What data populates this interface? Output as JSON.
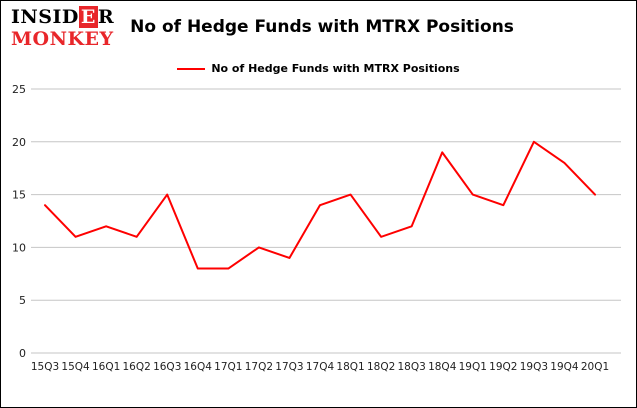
{
  "brand": {
    "line1_pre": "INSID",
    "line1_highlight": "E",
    "line1_post": "R",
    "line2": "MONKEY",
    "accent_color": "#e8262a"
  },
  "header": {
    "title": "No of Hedge Funds with MTRX Positions"
  },
  "legend": {
    "label": "No of Hedge Funds with MTRX Positions",
    "color": "#fe0000"
  },
  "chart_data": {
    "type": "line",
    "title": "No of Hedge Funds with MTRX Positions",
    "categories": [
      "15Q3",
      "15Q4",
      "16Q1",
      "16Q2",
      "16Q3",
      "16Q4",
      "17Q1",
      "17Q2",
      "17Q3",
      "17Q4",
      "18Q1",
      "18Q2",
      "18Q3",
      "18Q4",
      "19Q1",
      "19Q2",
      "19Q3",
      "19Q4",
      "20Q1"
    ],
    "values": [
      14,
      11,
      12,
      11,
      15,
      8,
      8,
      10,
      9,
      14,
      15,
      11,
      12,
      19,
      15,
      14,
      20,
      18,
      15
    ],
    "xlabel": "",
    "ylabel": "",
    "ylim": [
      0,
      25
    ],
    "yticks": [
      0,
      5,
      10,
      15,
      20,
      25
    ],
    "grid": true,
    "gridline_color": "#c6c6c6",
    "line_color": "#fe0000",
    "legend_position": "top-center"
  }
}
